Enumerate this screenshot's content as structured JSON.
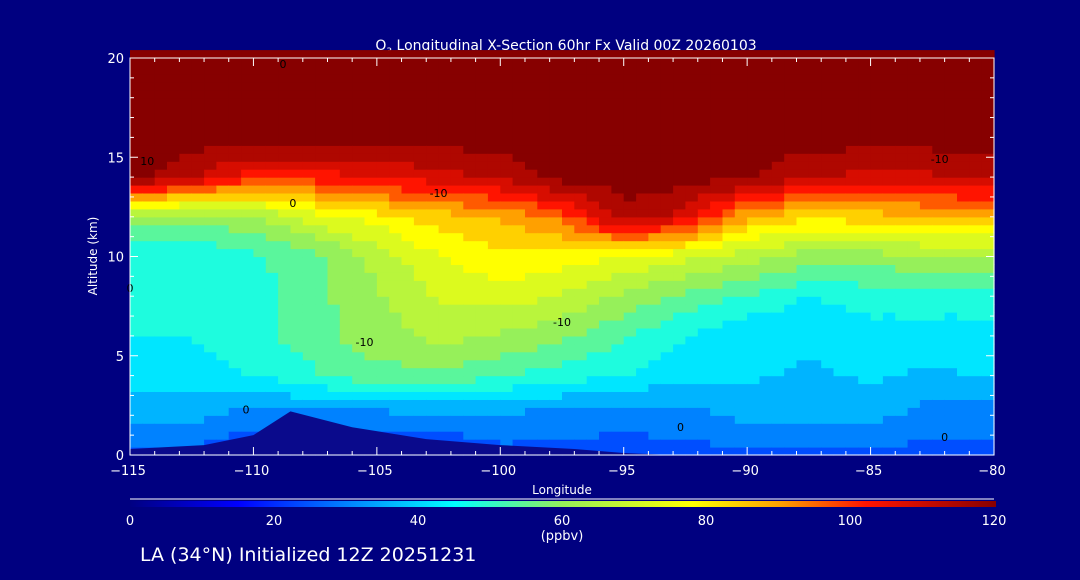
{
  "chart_data": {
    "type": "heatmap",
    "title_prefix": "O",
    "title_sub": "3",
    "title_rest": " Longitudinal X-Section 60hr  Fx Valid 00Z 20260103",
    "xlabel": "Longitude",
    "ylabel": "Altitude (km)",
    "xlim": [
      -115,
      -80
    ],
    "ylim": [
      0,
      20
    ],
    "xticks": [
      "-115",
      "-110",
      "-105",
      "-100",
      "-95",
      "-90",
      "-85",
      "-80"
    ],
    "xtick_values": [
      -115,
      -110,
      -105,
      -100,
      -95,
      -90,
      -85,
      -80
    ],
    "yticks": [
      "0",
      "5",
      "10",
      "15",
      "20"
    ],
    "ytick_values": [
      0,
      5,
      10,
      15,
      20
    ],
    "grid_lon": [
      -115,
      -112.5,
      -110,
      -107.5,
      -105,
      -102.5,
      -100,
      -97.5,
      -95,
      -92.5,
      -90,
      -87.5,
      -85,
      -82.5,
      -80
    ],
    "grid_alt": [
      0,
      2,
      4,
      6,
      8,
      10,
      12,
      14,
      16,
      18,
      20
    ],
    "values_ppbv": [
      [
        25,
        25,
        20,
        20,
        20,
        20,
        25,
        25,
        25,
        25,
        25,
        25,
        25,
        25,
        25
      ],
      [
        35,
        35,
        30,
        30,
        30,
        32,
        32,
        30,
        28,
        30,
        35,
        35,
        35,
        30,
        30
      ],
      [
        42,
        42,
        45,
        50,
        55,
        55,
        52,
        48,
        45,
        40,
        40,
        38,
        40,
        38,
        40
      ],
      [
        45,
        45,
        48,
        55,
        60,
        65,
        62,
        58,
        52,
        45,
        40,
        40,
        42,
        42,
        42
      ],
      [
        45,
        45,
        48,
        55,
        62,
        70,
        72,
        68,
        62,
        55,
        50,
        45,
        48,
        48,
        48
      ],
      [
        45,
        45,
        50,
        55,
        65,
        75,
        80,
        78,
        75,
        70,
        65,
        60,
        60,
        62,
        62
      ],
      [
        62,
        58,
        62,
        72,
        78,
        84,
        88,
        95,
        115,
        108,
        88,
        82,
        84,
        86,
        88
      ],
      [
        120,
        112,
        102,
        102,
        106,
        108,
        112,
        120,
        120,
        120,
        118,
        112,
        108,
        110,
        112
      ],
      [
        120,
        120,
        120,
        120,
        120,
        120,
        120,
        120,
        120,
        120,
        120,
        120,
        120,
        120,
        120
      ],
      [
        120,
        120,
        120,
        120,
        120,
        120,
        120,
        120,
        120,
        120,
        120,
        120,
        120,
        120,
        120
      ],
      [
        120,
        120,
        120,
        120,
        120,
        120,
        120,
        120,
        120,
        120,
        120,
        120,
        120,
        120,
        120
      ]
    ],
    "terrain_lon": [
      -115,
      -112,
      -110,
      -108.5,
      -106,
      -103,
      -100,
      -97,
      -95,
      -93,
      -80
    ],
    "terrain_km": [
      0.3,
      0.5,
      1.0,
      2.2,
      1.4,
      0.8,
      0.5,
      0.3,
      0.1,
      0,
      0
    ],
    "contour_labels": [
      {
        "text": "0",
        "lon": -108.8,
        "alt": 19.5
      },
      {
        "text": "10",
        "lon": -114.3,
        "alt": 14.6
      },
      {
        "text": "0",
        "lon": -108.4,
        "alt": 12.5
      },
      {
        "text": "-10",
        "lon": -102.5,
        "alt": 13.0
      },
      {
        "text": "-10",
        "lon": -82.2,
        "alt": 14.7
      },
      {
        "text": "0",
        "lon": -115,
        "alt": 8.2
      },
      {
        "text": "-10",
        "lon": -105.5,
        "alt": 5.5
      },
      {
        "text": "-10",
        "lon": -97.5,
        "alt": 6.5
      },
      {
        "text": "0",
        "lon": -110.3,
        "alt": 2.1
      },
      {
        "text": "0",
        "lon": -92.7,
        "alt": 1.2
      },
      {
        "text": "0",
        "lon": -82,
        "alt": 0.7
      }
    ],
    "colorbar": {
      "ticks": [
        "0",
        "20",
        "40",
        "60",
        "80",
        "100",
        "120"
      ],
      "tick_values": [
        0,
        20,
        40,
        60,
        80,
        100,
        120
      ],
      "units": "(ppbv)",
      "range": [
        0,
        120
      ]
    }
  },
  "footer": "LA (34°N) Initialized 12Z 20251231"
}
